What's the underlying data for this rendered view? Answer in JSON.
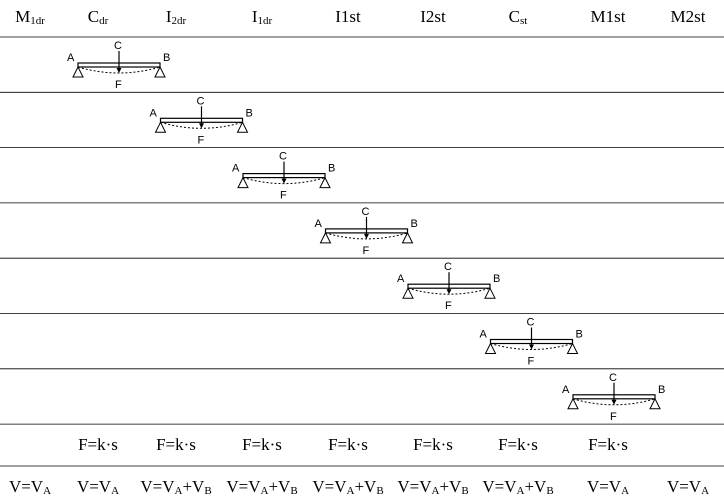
{
  "header": [
    [
      "M",
      "1dr"
    ],
    [
      "C",
      "dr"
    ],
    [
      "I",
      "2dr"
    ],
    [
      "I",
      "1dr"
    ],
    [
      "I1st"
    ],
    [
      "I2st"
    ],
    [
      "C",
      "st"
    ],
    [
      "M1st"
    ],
    [
      "M2st"
    ]
  ],
  "beam_labels": {
    "a": "A",
    "b": "B",
    "c": "C",
    "f": "F"
  },
  "f_row": [
    null,
    "F=k·s",
    "F=k·s",
    "F=k·s",
    "F=k·s",
    "F=k·s",
    "F=k·s",
    "F=k·s",
    null
  ],
  "v_row": [
    [
      "V=V",
      "A"
    ],
    [
      "V=V",
      "A"
    ],
    [
      "V=V",
      "A",
      "+V",
      "B"
    ],
    [
      "V=V",
      "A",
      "+V",
      "B"
    ],
    [
      "V=V",
      "A",
      "+V",
      "B"
    ],
    [
      "V=V",
      "A",
      "+V",
      "B"
    ],
    [
      "V=V",
      "A",
      "+V",
      "B"
    ],
    [
      "V=V",
      "A"
    ],
    [
      "V=V",
      "A"
    ]
  ]
}
